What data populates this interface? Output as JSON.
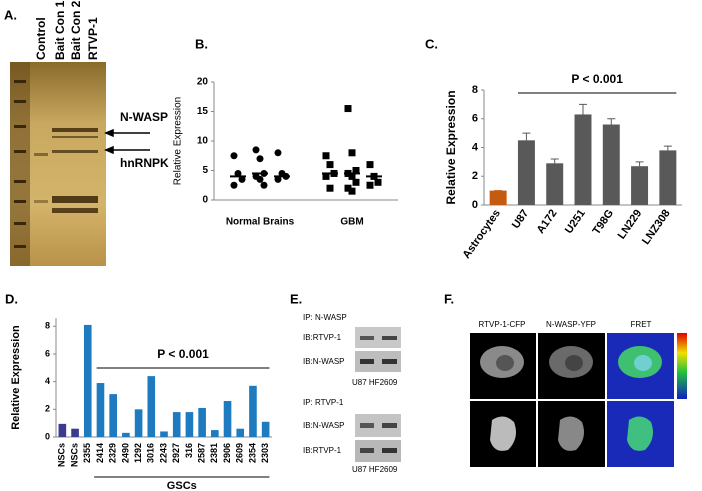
{
  "panel_a": {
    "label": "A.",
    "lanes": [
      "Control",
      "Bait Con 1",
      "Bait Con 2",
      "RTVP-1"
    ],
    "bands": [
      "N-WASP",
      "hnRNPK"
    ]
  },
  "panel_e": {
    "label": "E.",
    "blocks": [
      {
        "ip": "IP: N-WASP",
        "ib": [
          "IB:RTVP-1",
          "IB:N-WASP"
        ],
        "cells": "U87 HF2609"
      },
      {
        "ip": "IP: RTVP-1",
        "ib": [
          "IB:N-WASP",
          "IB:RTVP-1"
        ],
        "cells": "U87 HF2609"
      }
    ]
  },
  "panel_f": {
    "label": "F.",
    "columns": [
      "RTVP-1-CFP",
      "N-WASP-YFP",
      "FRET"
    ]
  },
  "chart_data": [
    {
      "type": "strip",
      "panel_label": "B.",
      "y_label": "Relative Expression",
      "color": "#000000",
      "ylim": [
        0,
        20
      ],
      "yticks": [
        0,
        5,
        10,
        15,
        20
      ],
      "groups": [
        {
          "name": "Normal Brains",
          "marker": "circle",
          "columns": [
            [
              7.5,
              4.5,
              3.5,
              2.5
            ],
            [
              8.5,
              7,
              4.5,
              4,
              3.5,
              2.5
            ],
            [
              8,
              4.5,
              4,
              3.5
            ]
          ],
          "medians": [
            4,
            4.5,
            4
          ]
        },
        {
          "name": "GBM",
          "marker": "square",
          "columns": [
            [
              7.5,
              6,
              4.5,
              4,
              2
            ],
            [
              15.5,
              8,
              5,
              4.5,
              4,
              3,
              2,
              1.5
            ],
            [
              6,
              4,
              3,
              2.5
            ]
          ],
          "medians": [
            4.5,
            4.5,
            4
          ]
        }
      ]
    },
    {
      "type": "bar",
      "panel_label": "C.",
      "y_label": "Relative Expression",
      "annotation": "P < 0.001",
      "categories": [
        "Astrocytes",
        "U87",
        "A172",
        "U251",
        "T98G",
        "LN229",
        "LNZ308"
      ],
      "values": [
        1,
        4.5,
        2.9,
        6.3,
        5.6,
        2.7,
        3.8
      ],
      "errors": [
        0,
        0.5,
        0.3,
        0.7,
        0.4,
        0.3,
        0.3
      ],
      "colors": [
        "#c55a11",
        "#595959",
        "#595959",
        "#595959",
        "#595959",
        "#595959",
        "#595959"
      ],
      "ylim": [
        0,
        8
      ],
      "yticks": [
        0,
        2,
        4,
        6,
        8
      ]
    },
    {
      "type": "bar",
      "panel_label": "D.",
      "y_label": "Relative Expression",
      "annotation": "P < 0.001",
      "group_label": "GSCs",
      "categories": [
        "NSCs",
        "NSCs",
        "2355",
        "2414",
        "2329",
        "2490",
        "1292",
        "3016",
        "2243",
        "2927",
        "316",
        "2587",
        "2381",
        "2906",
        "2609",
        "2354",
        "2303"
      ],
      "values": [
        0.95,
        0.6,
        8.1,
        3.9,
        3.1,
        0.3,
        2.0,
        4.4,
        0.4,
        1.8,
        1.8,
        2.1,
        0.5,
        2.6,
        0.6,
        3.7,
        1.1
      ],
      "colors": [
        "#3a3a8f",
        "#3a3a8f",
        "#1f7bbf",
        "#1f7bbf",
        "#1f7bbf",
        "#1f7bbf",
        "#1f7bbf",
        "#1f7bbf",
        "#1f7bbf",
        "#1f7bbf",
        "#1f7bbf",
        "#1f7bbf",
        "#1f7bbf",
        "#1f7bbf",
        "#1f7bbf",
        "#1f7bbf",
        "#1f7bbf"
      ],
      "ylim": [
        0,
        8.6
      ],
      "yticks": [
        0,
        2,
        4,
        6,
        8
      ]
    }
  ]
}
